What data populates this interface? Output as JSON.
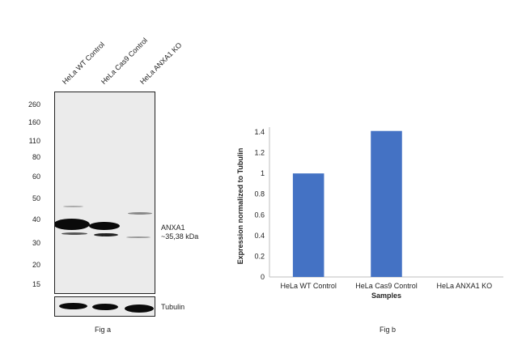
{
  "fig_a": {
    "lanes": [
      "HeLa WT Control",
      "HeLa Cas9 Control",
      "HeLa ANXA1 KO"
    ],
    "markers": [
      "260",
      "160",
      "110",
      "80",
      "60",
      "50",
      "40",
      "30",
      "20",
      "15"
    ],
    "band_label_line1": "ANXA1",
    "band_label_line2": "~35,38 kDa",
    "loading_label": "Tubulin",
    "caption": "Fig a"
  },
  "fig_b": {
    "caption": "Fig b"
  },
  "chart_data": {
    "type": "bar",
    "categories": [
      "HeLa WT Control",
      "HeLa Cas9 Control",
      "HeLa ANXA1 KO"
    ],
    "values": [
      1.0,
      1.41,
      0
    ],
    "title": "",
    "xlabel": "Samples",
    "ylabel": "Expression normalized to Tubulin",
    "ylim": [
      0,
      1.4
    ],
    "yticks": [
      "0",
      "0.2",
      "0.4",
      "0.6",
      "0.8",
      "1",
      "1.2",
      "1.4"
    ],
    "bar_color": "#4472c4",
    "grid": false,
    "legend": "none"
  }
}
